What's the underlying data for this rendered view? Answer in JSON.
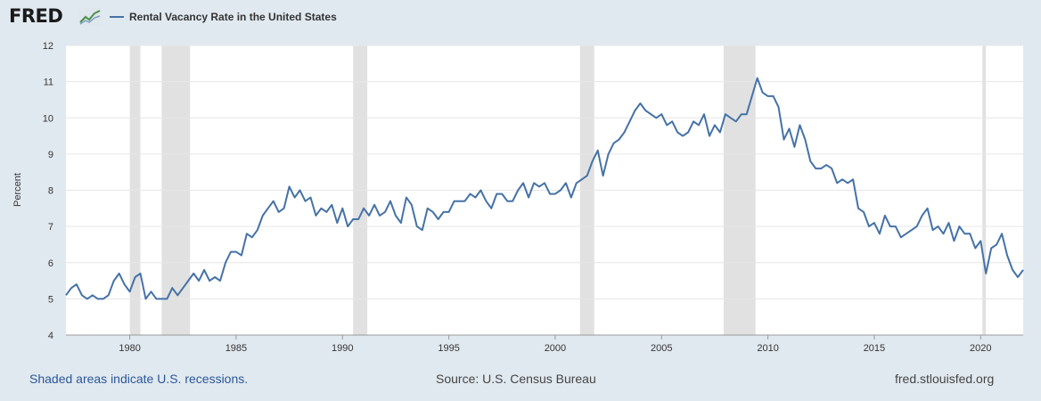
{
  "header": {
    "logo": "FRED",
    "logo_icon": "fred-chart-icon",
    "legend_label": "Rental Vacancy Rate in the United States"
  },
  "footer": {
    "recessions_note": "Shaded areas indicate U.S. recessions.",
    "source": "Source: U.S. Census Bureau",
    "site": "fred.stlouisfed.org"
  },
  "colors": {
    "line": "#4572a7",
    "recession": "#e1e1e1",
    "background": "#e1e9f0",
    "plot_bg": "#ffffff"
  },
  "chart_data": {
    "type": "line",
    "title": "",
    "ylabel": "Percent",
    "xlabel": "",
    "xlim": [
      1977.0,
      1982.0
    ],
    "ylim": [
      4,
      12
    ],
    "grid": true,
    "yticks": [
      "4",
      "5",
      "6",
      "7",
      "8",
      "9",
      "10",
      "11",
      "12"
    ],
    "xticks": [
      "1980",
      "1985",
      "1990",
      "1995",
      "2000",
      "2005",
      "2010",
      "2015",
      "2020"
    ],
    "recessions": [
      [
        "1980-01",
        "1980-07"
      ],
      [
        "1981-07",
        "1982-11"
      ],
      [
        "1990-07",
        "1991-03"
      ],
      [
        "2001-03",
        "2001-11"
      ],
      [
        "2007-12",
        "2009-06"
      ],
      [
        "2020-02",
        "2020-04"
      ]
    ],
    "series": [
      {
        "name": "Rental Vacancy Rate in the United States",
        "x": [
          "1977-Q1",
          "1977-Q2",
          "1977-Q3",
          "1977-Q4",
          "1978-Q1",
          "1978-Q2",
          "1978-Q3",
          "1978-Q4",
          "1979-Q1",
          "1979-Q2",
          "1979-Q3",
          "1979-Q4",
          "1980-Q1",
          "1980-Q2",
          "1980-Q3",
          "1980-Q4",
          "1981-Q1",
          "1981-Q2",
          "1981-Q3",
          "1981-Q4",
          "1982-Q1",
          "1982-Q2",
          "1982-Q3",
          "1982-Q4",
          "1983-Q1",
          "1983-Q2",
          "1983-Q3",
          "1983-Q4",
          "1984-Q1",
          "1984-Q2",
          "1984-Q3",
          "1984-Q4",
          "1985-Q1",
          "1985-Q2",
          "1985-Q3",
          "1985-Q4",
          "1986-Q1",
          "1986-Q2",
          "1986-Q3",
          "1986-Q4",
          "1987-Q1",
          "1987-Q2",
          "1987-Q3",
          "1987-Q4",
          "1988-Q1",
          "1988-Q2",
          "1988-Q3",
          "1988-Q4",
          "1989-Q1",
          "1989-Q2",
          "1989-Q3",
          "1989-Q4",
          "1990-Q1",
          "1990-Q2",
          "1990-Q3",
          "1990-Q4",
          "1991-Q1",
          "1991-Q2",
          "1991-Q3",
          "1991-Q4",
          "1992-Q1",
          "1992-Q2",
          "1992-Q3",
          "1992-Q4",
          "1993-Q1",
          "1993-Q2",
          "1993-Q3",
          "1993-Q4",
          "1994-Q1",
          "1994-Q2",
          "1994-Q3",
          "1994-Q4",
          "1995-Q1",
          "1995-Q2",
          "1995-Q3",
          "1995-Q4",
          "1996-Q1",
          "1996-Q2",
          "1996-Q3",
          "1996-Q4",
          "1997-Q1",
          "1997-Q2",
          "1997-Q3",
          "1997-Q4",
          "1998-Q1",
          "1998-Q2",
          "1998-Q3",
          "1998-Q4",
          "1999-Q1",
          "1999-Q2",
          "1999-Q3",
          "1999-Q4",
          "2000-Q1",
          "2000-Q2",
          "2000-Q3",
          "2000-Q4",
          "2001-Q1",
          "2001-Q2",
          "2001-Q3",
          "2001-Q4",
          "2002-Q1",
          "2002-Q2",
          "2002-Q3",
          "2002-Q4",
          "2003-Q1",
          "2003-Q2",
          "2003-Q3",
          "2003-Q4",
          "2004-Q1",
          "2004-Q2",
          "2004-Q3",
          "2004-Q4",
          "2005-Q1",
          "2005-Q2",
          "2005-Q3",
          "2005-Q4",
          "2006-Q1",
          "2006-Q2",
          "2006-Q3",
          "2006-Q4",
          "2007-Q1",
          "2007-Q2",
          "2007-Q3",
          "2007-Q4",
          "2008-Q1",
          "2008-Q2",
          "2008-Q3",
          "2008-Q4",
          "2009-Q1",
          "2009-Q2",
          "2009-Q3",
          "2009-Q4",
          "2010-Q1",
          "2010-Q2",
          "2010-Q3",
          "2010-Q4",
          "2011-Q1",
          "2011-Q2",
          "2011-Q3",
          "2011-Q4",
          "2012-Q1",
          "2012-Q2",
          "2012-Q3",
          "2012-Q4",
          "2013-Q1",
          "2013-Q2",
          "2013-Q3",
          "2013-Q4",
          "2014-Q1",
          "2014-Q2",
          "2014-Q3",
          "2014-Q4",
          "2015-Q1",
          "2015-Q2",
          "2015-Q3",
          "2015-Q4",
          "2016-Q1",
          "2016-Q2",
          "2016-Q3",
          "2016-Q4",
          "2017-Q1",
          "2017-Q2",
          "2017-Q3",
          "2017-Q4",
          "2018-Q1",
          "2018-Q2",
          "2018-Q3",
          "2018-Q4",
          "2019-Q1",
          "2019-Q2",
          "2019-Q3",
          "2019-Q4",
          "2020-Q1",
          "2020-Q2",
          "2020-Q3",
          "2020-Q4",
          "2021-Q1",
          "2021-Q2",
          "2021-Q3",
          "2021-Q4",
          "2022-Q1"
        ],
        "values": [
          5.1,
          5.3,
          5.4,
          5.1,
          5.0,
          5.1,
          5.0,
          5.0,
          5.1,
          5.5,
          5.7,
          5.4,
          5.2,
          5.6,
          5.7,
          5.0,
          5.2,
          5.0,
          5.0,
          5.0,
          5.3,
          5.1,
          5.3,
          5.5,
          5.7,
          5.5,
          5.8,
          5.5,
          5.6,
          5.5,
          6.0,
          6.3,
          6.3,
          6.2,
          6.8,
          6.7,
          6.9,
          7.3,
          7.5,
          7.7,
          7.4,
          7.5,
          8.1,
          7.8,
          8.0,
          7.7,
          7.8,
          7.3,
          7.5,
          7.4,
          7.6,
          7.1,
          7.5,
          7.0,
          7.2,
          7.2,
          7.5,
          7.3,
          7.6,
          7.3,
          7.4,
          7.7,
          7.3,
          7.1,
          7.8,
          7.6,
          7.0,
          6.9,
          7.5,
          7.4,
          7.2,
          7.4,
          7.4,
          7.7,
          7.7,
          7.7,
          7.9,
          7.8,
          8.0,
          7.7,
          7.5,
          7.9,
          7.9,
          7.7,
          7.7,
          8.0,
          8.2,
          7.8,
          8.2,
          8.1,
          8.2,
          7.9,
          7.9,
          8.0,
          8.2,
          7.8,
          8.2,
          8.3,
          8.4,
          8.8,
          9.1,
          8.4,
          9.0,
          9.3,
          9.4,
          9.6,
          9.9,
          10.2,
          10.4,
          10.2,
          10.1,
          10.0,
          10.1,
          9.8,
          9.9,
          9.6,
          9.5,
          9.6,
          9.9,
          9.8,
          10.1,
          9.5,
          9.8,
          9.6,
          10.1,
          10.0,
          9.9,
          10.1,
          10.1,
          10.6,
          11.1,
          10.7,
          10.6,
          10.6,
          10.3,
          9.4,
          9.7,
          9.2,
          9.8,
          9.4,
          8.8,
          8.6,
          8.6,
          8.7,
          8.6,
          8.2,
          8.3,
          8.2,
          8.3,
          7.5,
          7.4,
          7.0,
          7.1,
          6.8,
          7.3,
          7.0,
          7.0,
          6.7,
          6.8,
          6.9,
          7.0,
          7.3,
          7.5,
          6.9,
          7.0,
          6.8,
          7.1,
          6.6,
          7.0,
          6.8,
          6.8,
          6.4,
          6.6,
          5.7,
          6.4,
          6.5,
          6.8,
          6.2,
          5.8,
          5.6,
          5.8
        ]
      }
    ]
  }
}
